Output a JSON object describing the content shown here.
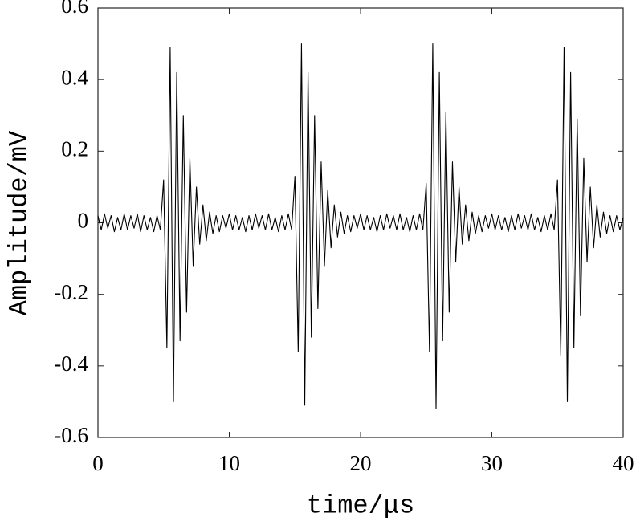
{
  "chart_data": {
    "type": "line",
    "xlabel": "time/μs",
    "ylabel": "Amplitude/mV",
    "color": "#000000",
    "xlim": [
      0,
      40
    ],
    "xticks": [
      0,
      10,
      20,
      30,
      40
    ],
    "ylim": [
      -0.6,
      0.6
    ],
    "yticks": [
      -0.6,
      -0.4,
      -0.2,
      0,
      0.2,
      0.4,
      0.6
    ],
    "x": [
      0,
      0.25,
      0.5,
      0.75,
      1,
      1.25,
      1.5,
      1.75,
      2,
      2.25,
      2.5,
      2.75,
      3,
      3.25,
      3.5,
      3.75,
      4,
      4.25,
      4.5,
      4.75,
      5,
      5.25,
      5.5,
      5.75,
      6,
      6.25,
      6.5,
      6.75,
      7,
      7.25,
      7.5,
      7.75,
      8,
      8.25,
      8.5,
      8.75,
      9,
      9.25,
      9.5,
      9.75,
      10,
      10.25,
      10.5,
      10.75,
      11,
      11.25,
      11.5,
      11.75,
      12,
      12.25,
      12.5,
      12.75,
      13,
      13.25,
      13.5,
      13.75,
      14,
      14.25,
      14.5,
      14.75,
      15,
      15.25,
      15.5,
      15.75,
      16,
      16.25,
      16.5,
      16.75,
      17,
      17.25,
      17.5,
      17.75,
      18,
      18.25,
      18.5,
      18.75,
      19,
      19.25,
      19.5,
      19.75,
      20,
      20.25,
      20.5,
      20.75,
      21,
      21.25,
      21.5,
      21.75,
      22,
      22.25,
      22.5,
      22.75,
      23,
      23.25,
      23.5,
      23.75,
      24,
      24.25,
      24.5,
      24.75,
      25,
      25.25,
      25.5,
      25.75,
      26,
      26.25,
      26.5,
      26.75,
      27,
      27.25,
      27.5,
      27.75,
      28,
      28.25,
      28.5,
      28.75,
      29,
      29.25,
      29.5,
      29.75,
      30,
      30.25,
      30.5,
      30.75,
      31,
      31.25,
      31.5,
      31.75,
      32,
      32.25,
      32.5,
      32.75,
      33,
      33.25,
      33.5,
      33.75,
      34,
      34.25,
      34.5,
      34.75,
      35,
      35.25,
      35.5,
      35.75,
      36,
      36.25,
      36.5,
      36.75,
      37,
      37.25,
      37.5,
      37.75,
      38,
      38.25,
      38.5,
      38.75,
      39,
      39.25,
      39.5,
      39.75,
      40
    ],
    "values": [
      0.02,
      -0.02,
      0.025,
      -0.015,
      0.02,
      -0.025,
      0.015,
      -0.02,
      0.025,
      -0.02,
      0.02,
      -0.015,
      0.025,
      -0.025,
      0.02,
      -0.02,
      0.015,
      -0.025,
      0.02,
      -0.02,
      0.12,
      -0.35,
      0.49,
      -0.5,
      0.42,
      -0.33,
      0.3,
      -0.25,
      0.18,
      -0.12,
      0.1,
      -0.06,
      0.05,
      -0.05,
      0.03,
      -0.03,
      0.02,
      -0.025,
      0.02,
      -0.015,
      0.025,
      -0.02,
      0.02,
      -0.02,
      0.015,
      -0.025,
      0.02,
      -0.02,
      0.025,
      -0.015,
      0.02,
      -0.02,
      0.025,
      -0.02,
      0.015,
      -0.025,
      0.02,
      -0.02,
      0.025,
      -0.02,
      0.13,
      -0.36,
      0.5,
      -0.51,
      0.42,
      -0.32,
      0.3,
      -0.24,
      0.17,
      -0.12,
      0.09,
      -0.07,
      0.05,
      -0.04,
      0.03,
      -0.03,
      0.02,
      -0.025,
      0.02,
      -0.015,
      0.025,
      -0.02,
      0.02,
      -0.02,
      0.015,
      -0.025,
      0.02,
      -0.02,
      0.025,
      -0.015,
      0.02,
      -0.02,
      0.025,
      -0.02,
      0.015,
      -0.025,
      0.02,
      -0.02,
      0.025,
      -0.02,
      0.11,
      -0.36,
      0.5,
      -0.52,
      0.42,
      -0.33,
      0.31,
      -0.25,
      0.17,
      -0.11,
      0.1,
      -0.06,
      0.05,
      -0.05,
      0.03,
      -0.03,
      0.02,
      -0.025,
      0.02,
      -0.015,
      0.025,
      -0.02,
      0.02,
      -0.02,
      0.015,
      -0.025,
      0.02,
      -0.02,
      0.025,
      -0.015,
      0.02,
      -0.02,
      0.025,
      -0.02,
      0.015,
      -0.025,
      0.02,
      -0.02,
      0.025,
      -0.02,
      0.12,
      -0.37,
      0.49,
      -0.5,
      0.42,
      -0.35,
      0.29,
      -0.26,
      0.18,
      -0.11,
      0.1,
      -0.07,
      0.05,
      -0.04,
      0.03,
      -0.03,
      0.02,
      -0.025,
      0.02,
      -0.02,
      0.015
    ]
  }
}
